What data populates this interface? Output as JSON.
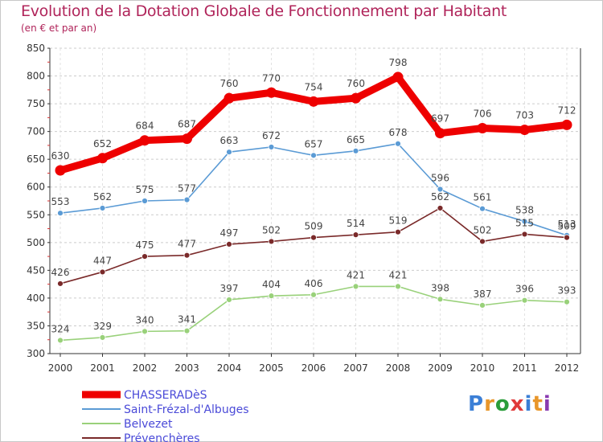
{
  "header": {
    "title": "Evolution de la Dotation Globale de Fonctionnement par Habitant",
    "subtitle": "(en € et par an)"
  },
  "logo": {
    "text": "Proxiti",
    "colors": [
      "#3b7fd6",
      "#e8962a",
      "#2a9d3a",
      "#e03a3a",
      "#3b7fd6",
      "#e8962a",
      "#8a3ab0"
    ]
  },
  "chart_data": {
    "type": "line",
    "title": "Evolution de la Dotation Globale de Fonctionnement par Habitant",
    "subtitle": "(en € et par an)",
    "x": [
      2000,
      2001,
      2002,
      2003,
      2004,
      2005,
      2006,
      2007,
      2008,
      2009,
      2010,
      2011,
      2012
    ],
    "x_tick_labels": [
      "2000",
      "2001",
      "2002",
      "2003",
      "2004",
      "2005",
      "2006",
      "2007",
      "2008",
      "2009",
      "2010",
      "2011",
      "2012"
    ],
    "ylim": [
      300,
      850
    ],
    "y_ticks": [
      300,
      350,
      400,
      450,
      500,
      550,
      600,
      650,
      700,
      750,
      800,
      850
    ],
    "grid": "horizontal dashed",
    "legend_position": "bottom-left",
    "series": [
      {
        "name": "CHASSERADèS",
        "color": "#ee0000",
        "thick": true,
        "values": [
          630,
          652,
          684,
          687,
          760,
          770,
          754,
          760,
          798,
          697,
          706,
          703,
          712
        ]
      },
      {
        "name": "Saint-Frézal-d'Albuges",
        "color": "#5b9bd5",
        "thick": false,
        "values": [
          553,
          562,
          575,
          577,
          663,
          672,
          657,
          665,
          678,
          596,
          561,
          538,
          513
        ]
      },
      {
        "name": "Belvezet",
        "color": "#99d17a",
        "thick": false,
        "values": [
          324,
          329,
          340,
          341,
          397,
          404,
          406,
          421,
          421,
          398,
          387,
          396,
          393
        ]
      },
      {
        "name": "Prévenchères",
        "color": "#7a2a2a",
        "thick": false,
        "values": [
          426,
          447,
          475,
          477,
          497,
          502,
          509,
          514,
          519,
          562,
          502,
          515,
          509
        ]
      }
    ]
  }
}
